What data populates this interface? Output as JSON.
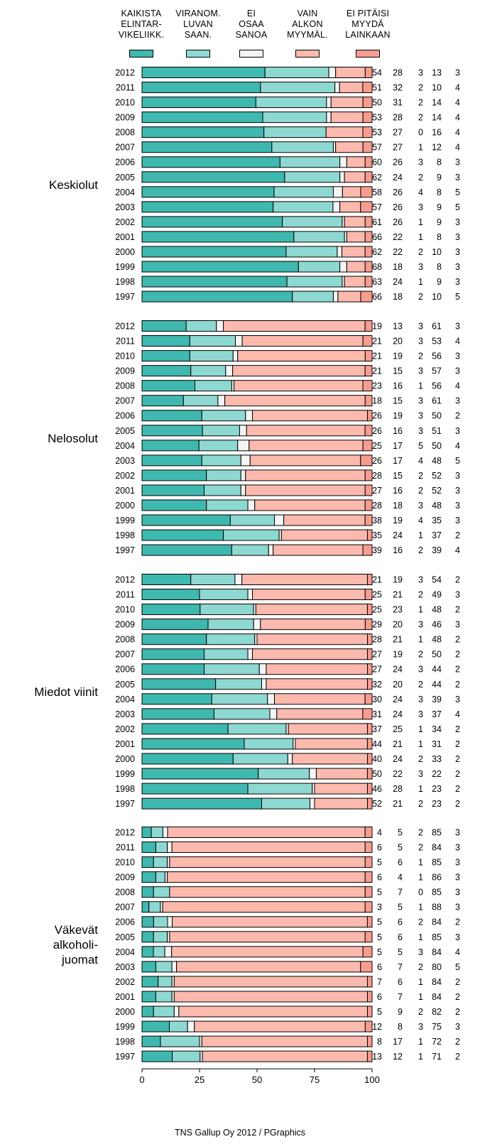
{
  "legend": [
    {
      "label": "KAIKISTA\nELINTAR-\nVIKELIIKK.",
      "color": "#3fb8af"
    },
    {
      "label": "VIRANOM.\nLUVAN\nSAAN.",
      "color": "#8ed8d2"
    },
    {
      "label": "EI\nOSAA\nSANOA",
      "color": "#f4f4f4"
    },
    {
      "label": "VAIN\nALKON\nMYYMÄL.",
      "color": "#fcb9ad"
    },
    {
      "label": "EI PITÄISI\nMYYDÄ\nLAINKAAN",
      "color": "#f79c8f"
    }
  ],
  "credit": "TNS Gallup Oy 2012 / PGraphics",
  "chart_data": {
    "type": "bar",
    "orientation": "horizontal",
    "stacked": true,
    "xlim": [
      0,
      100
    ],
    "x_ticks": [
      0,
      25,
      50,
      75,
      100
    ],
    "series_names": [
      "KAIKISTA ELINTAR-VIKELIIKK.",
      "VIRANOM. LUVAN SAAN.",
      "EI OSAA SANOA",
      "VAIN ALKON MYYMÄL.",
      "EI PITÄISI MYYDÄ LAINKAAN"
    ],
    "groups": [
      {
        "label": "Keskiolut",
        "rows": [
          {
            "year": "2012",
            "values": [
              54,
              28,
              3,
              13,
              3
            ]
          },
          {
            "year": "2011",
            "values": [
              51,
              32,
              2,
              10,
              4
            ]
          },
          {
            "year": "2010",
            "values": [
              50,
              31,
              2,
              14,
              4
            ]
          },
          {
            "year": "2009",
            "values": [
              53,
              28,
              2,
              14,
              4
            ]
          },
          {
            "year": "2008",
            "values": [
              53,
              27,
              0,
              16,
              4
            ]
          },
          {
            "year": "2007",
            "values": [
              57,
              27,
              1,
              12,
              4
            ]
          },
          {
            "year": "2006",
            "values": [
              60,
              26,
              3,
              8,
              3
            ]
          },
          {
            "year": "2005",
            "values": [
              62,
              24,
              2,
              9,
              3
            ]
          },
          {
            "year": "2004",
            "values": [
              58,
              26,
              4,
              8,
              5
            ]
          },
          {
            "year": "2003",
            "values": [
              57,
              26,
              3,
              9,
              5
            ]
          },
          {
            "year": "2002",
            "values": [
              61,
              26,
              1,
              9,
              3
            ]
          },
          {
            "year": "2001",
            "values": [
              66,
              22,
              1,
              8,
              3
            ]
          },
          {
            "year": "2000",
            "values": [
              62,
              22,
              2,
              10,
              3
            ]
          },
          {
            "year": "1999",
            "values": [
              68,
              18,
              3,
              8,
              3
            ]
          },
          {
            "year": "1998",
            "values": [
              63,
              24,
              1,
              9,
              3
            ]
          },
          {
            "year": "1997",
            "values": [
              66,
              18,
              2,
              10,
              5
            ]
          }
        ]
      },
      {
        "label": "Nelosolut",
        "rows": [
          {
            "year": "2012",
            "values": [
              19,
              13,
              3,
              61,
              3
            ]
          },
          {
            "year": "2011",
            "values": [
              21,
              20,
              3,
              53,
              4
            ]
          },
          {
            "year": "2010",
            "values": [
              21,
              19,
              2,
              56,
              3
            ]
          },
          {
            "year": "2009",
            "values": [
              21,
              15,
              3,
              57,
              3
            ]
          },
          {
            "year": "2008",
            "values": [
              23,
              16,
              1,
              56,
              4
            ]
          },
          {
            "year": "2007",
            "values": [
              18,
              15,
              3,
              61,
              3
            ]
          },
          {
            "year": "2006",
            "values": [
              26,
              19,
              3,
              50,
              2
            ]
          },
          {
            "year": "2005",
            "values": [
              26,
              16,
              3,
              51,
              3
            ]
          },
          {
            "year": "2004",
            "values": [
              25,
              17,
              5,
              50,
              4
            ]
          },
          {
            "year": "2003",
            "values": [
              26,
              17,
              4,
              48,
              5
            ]
          },
          {
            "year": "2002",
            "values": [
              28,
              15,
              2,
              52,
              3
            ]
          },
          {
            "year": "2001",
            "values": [
              27,
              16,
              2,
              52,
              3
            ]
          },
          {
            "year": "2000",
            "values": [
              28,
              18,
              3,
              48,
              3
            ]
          },
          {
            "year": "1999",
            "values": [
              38,
              19,
              4,
              35,
              3
            ]
          },
          {
            "year": "1998",
            "values": [
              35,
              24,
              1,
              37,
              2
            ]
          },
          {
            "year": "1997",
            "values": [
              39,
              16,
              2,
              39,
              4
            ]
          }
        ]
      },
      {
        "label": "Miedot viinit",
        "rows": [
          {
            "year": "2012",
            "values": [
              21,
              19,
              3,
              54,
              2
            ]
          },
          {
            "year": "2011",
            "values": [
              25,
              21,
              2,
              49,
              3
            ]
          },
          {
            "year": "2010",
            "values": [
              25,
              23,
              1,
              48,
              2
            ]
          },
          {
            "year": "2009",
            "values": [
              29,
              20,
              3,
              46,
              3
            ]
          },
          {
            "year": "2008",
            "values": [
              28,
              21,
              1,
              48,
              2
            ]
          },
          {
            "year": "2007",
            "values": [
              27,
              19,
              2,
              50,
              2
            ]
          },
          {
            "year": "2006",
            "values": [
              27,
              24,
              3,
              44,
              2
            ]
          },
          {
            "year": "2005",
            "values": [
              32,
              20,
              2,
              44,
              2
            ]
          },
          {
            "year": "2004",
            "values": [
              30,
              24,
              3,
              39,
              3
            ]
          },
          {
            "year": "2003",
            "values": [
              31,
              24,
              3,
              37,
              4
            ]
          },
          {
            "year": "2002",
            "values": [
              37,
              25,
              1,
              34,
              2
            ]
          },
          {
            "year": "2001",
            "values": [
              44,
              21,
              1,
              31,
              2
            ]
          },
          {
            "year": "2000",
            "values": [
              40,
              24,
              2,
              33,
              2
            ]
          },
          {
            "year": "1999",
            "values": [
              50,
              22,
              3,
              22,
              2
            ]
          },
          {
            "year": "1998",
            "values": [
              46,
              28,
              1,
              23,
              2
            ]
          },
          {
            "year": "1997",
            "values": [
              52,
              21,
              2,
              23,
              2
            ]
          }
        ]
      },
      {
        "label": "Väkevät\nalkoholi-\njuomat",
        "rows": [
          {
            "year": "2012",
            "values": [
              4,
              5,
              2,
              85,
              3
            ]
          },
          {
            "year": "2011",
            "values": [
              6,
              5,
              2,
              84,
              3
            ]
          },
          {
            "year": "2010",
            "values": [
              5,
              6,
              1,
              85,
              3
            ]
          },
          {
            "year": "2009",
            "values": [
              6,
              4,
              1,
              86,
              3
            ]
          },
          {
            "year": "2008",
            "values": [
              5,
              7,
              0,
              85,
              3
            ]
          },
          {
            "year": "2007",
            "values": [
              3,
              5,
              1,
              88,
              3
            ]
          },
          {
            "year": "2006",
            "values": [
              5,
              6,
              2,
              84,
              2
            ]
          },
          {
            "year": "2005",
            "values": [
              5,
              6,
              1,
              85,
              3
            ]
          },
          {
            "year": "2004",
            "values": [
              5,
              5,
              3,
              84,
              4
            ]
          },
          {
            "year": "2003",
            "values": [
              6,
              7,
              2,
              80,
              5
            ]
          },
          {
            "year": "2002",
            "values": [
              7,
              6,
              1,
              84,
              2
            ]
          },
          {
            "year": "2001",
            "values": [
              6,
              7,
              1,
              84,
              2
            ]
          },
          {
            "year": "2000",
            "values": [
              5,
              9,
              2,
              82,
              2
            ]
          },
          {
            "year": "1999",
            "values": [
              12,
              8,
              3,
              75,
              3
            ]
          },
          {
            "year": "1998",
            "values": [
              8,
              17,
              1,
              72,
              2
            ]
          },
          {
            "year": "1997",
            "values": [
              13,
              12,
              1,
              71,
              2
            ]
          }
        ]
      }
    ]
  }
}
